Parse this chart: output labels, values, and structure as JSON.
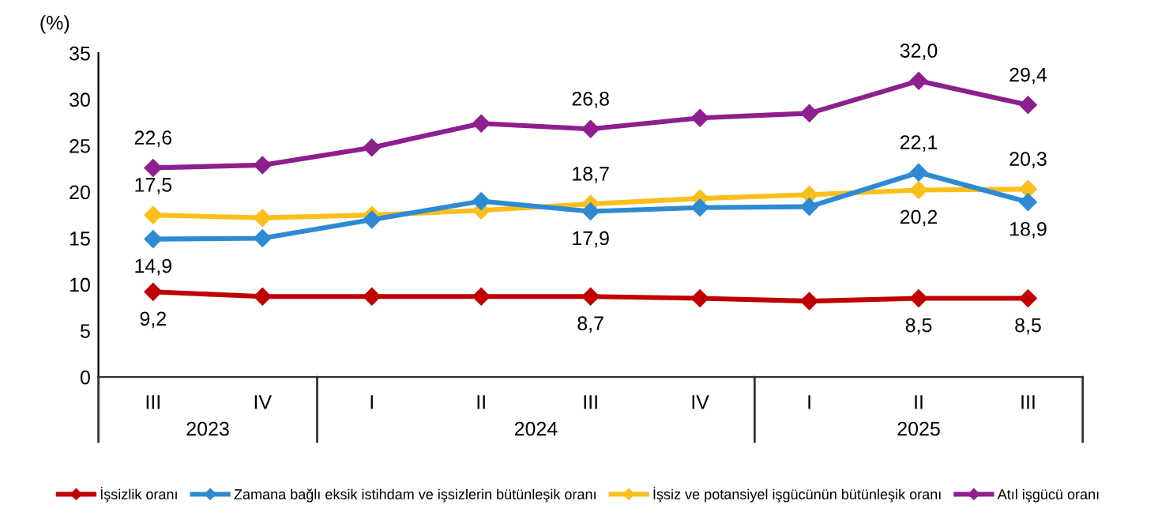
{
  "chart_data": {
    "type": "line",
    "ylabel": "(%)",
    "categories": [
      "III",
      "IV",
      "I",
      "II",
      "III",
      "IV",
      "I",
      "II",
      "III"
    ],
    "annotations": [
      "2023",
      "2024",
      "2025"
    ],
    "ylim": [
      0,
      35
    ],
    "yticks": [
      0,
      5,
      10,
      15,
      20,
      25,
      30,
      35
    ],
    "grid": false,
    "legend": "bottom",
    "marker": "diamond",
    "line_style": "solid",
    "series": [
      {
        "name": "İşsizlik oranı",
        "color": "#c00000",
        "values": [
          9.2,
          8.7,
          8.7,
          8.7,
          8.7,
          8.5,
          8.2,
          8.5,
          8.5
        ],
        "value_labels": [
          "9,2",
          null,
          null,
          null,
          "8,7",
          null,
          null,
          "8,5",
          "8,5"
        ]
      },
      {
        "name": "Zamana bağlı eksik istihdam ve işsizlerin bütünleşik oranı",
        "color": "#2e8bd3",
        "values": [
          14.9,
          15.0,
          17.0,
          19.0,
          17.9,
          18.3,
          18.4,
          22.1,
          18.9
        ],
        "value_labels": [
          "14,9",
          null,
          null,
          null,
          "17,9",
          null,
          null,
          "22,1",
          "18,9"
        ]
      },
      {
        "name": "İşsiz ve potansiyel işgücünün bütünleşik oranı",
        "color": "#fbbf1c",
        "values": [
          17.5,
          17.2,
          17.5,
          18.0,
          18.7,
          19.3,
          19.7,
          20.2,
          20.3
        ],
        "value_labels": [
          "17,5",
          null,
          null,
          null,
          "18,7",
          null,
          null,
          "20,2",
          "20,3"
        ]
      },
      {
        "name": "Atıl işgücü oranı",
        "color": "#8e1f8e",
        "values": [
          22.6,
          22.9,
          24.8,
          27.4,
          26.8,
          28.0,
          28.5,
          32.0,
          29.4
        ],
        "value_labels": [
          "22,6",
          null,
          null,
          null,
          "26,8",
          null,
          null,
          "32,0",
          "29,4"
        ]
      }
    ]
  }
}
